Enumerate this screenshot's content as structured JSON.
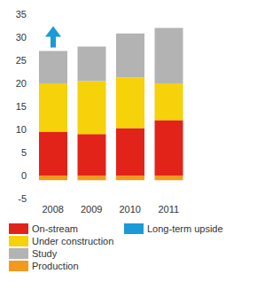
{
  "chart_data": {
    "type": "bar",
    "stacked": true,
    "grid": false,
    "categories": [
      "2008",
      "2009",
      "2010",
      "2011"
    ],
    "ylim": [
      -5,
      35
    ],
    "yticks": [
      -5,
      0,
      5,
      10,
      15,
      20,
      25,
      30,
      35
    ],
    "series": [
      {
        "name": "On-stream",
        "color": "#e2231a",
        "values": [
          9.5,
          9,
          10.3,
          12
        ]
      },
      {
        "name": "Under construction",
        "color": "#f5d20a",
        "values": [
          10.5,
          11.5,
          11,
          8
        ]
      },
      {
        "name": "Study",
        "color": "#b3b3b3",
        "values": [
          7,
          7.5,
          9.5,
          12
        ]
      },
      {
        "name": "Production",
        "color": "#f39a1e",
        "values": [
          -1,
          -1,
          -1,
          -1
        ]
      },
      {
        "name": "Long-term upside",
        "color": "#1a9ad6",
        "type": "arrow"
      }
    ]
  }
}
